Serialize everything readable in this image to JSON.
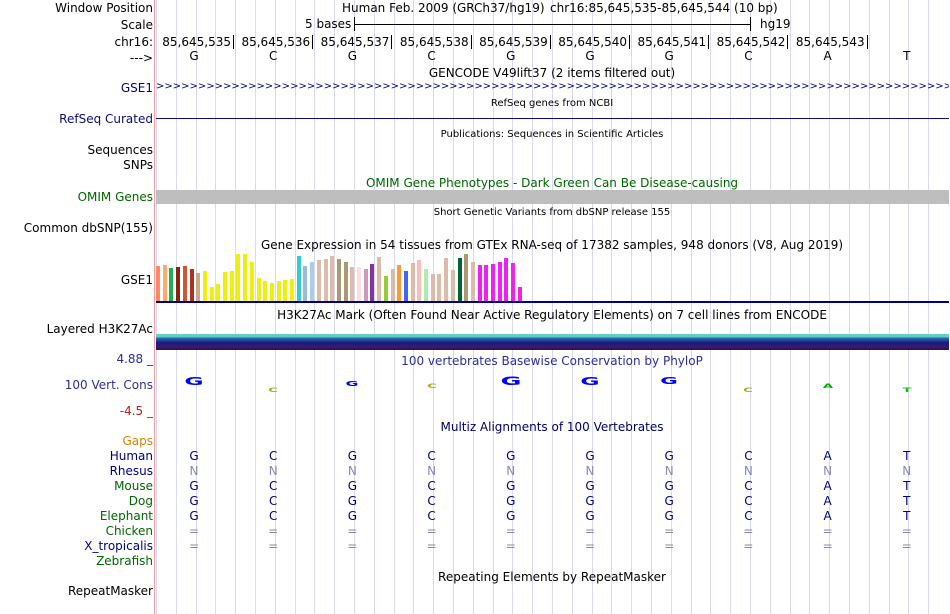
{
  "header": {
    "window_position_label": "Window Position",
    "scale_label": "Scale",
    "chrom_label": "chr16:",
    "strand_label": "--->",
    "assembly": "Human Feb. 2009 (GRCh37/hg19)",
    "position": "chr16:85,645,535-85,645,544 (10 bp)",
    "scale_text": "5 bases",
    "assembly_short": "hg19"
  },
  "coordinates": [
    "85,645,535",
    "85,645,536",
    "85,645,537",
    "85,645,538",
    "85,645,539",
    "85,645,540",
    "85,645,541",
    "85,645,542",
    "85,645,543"
  ],
  "bases": [
    "G",
    "C",
    "G",
    "C",
    "G",
    "G",
    "G",
    "C",
    "A",
    "T"
  ],
  "tracks": {
    "gencode": {
      "title": "GENCODE V49lift37 (2 items filtered out)",
      "item_label": "GSE1",
      "color": "#000080"
    },
    "refseq": {
      "title": "RefSeq genes from NCBI",
      "label": "RefSeq Curated",
      "color": "#0c0c78"
    },
    "publications": {
      "title": "Publications: Sequences in Scientific Articles",
      "label_line1": "Sequences",
      "label_line2": "SNPs"
    },
    "omim": {
      "title": "OMIM Gene Phenotypes - Dark Green Can Be Disease-causing",
      "label": "OMIM Genes",
      "color": "#006600",
      "bar_color": "#bebebe"
    },
    "dbsnp": {
      "title": "Short Genetic Variants from dbSNP release 155",
      "label": "Common dbSNP(155)"
    },
    "gtex": {
      "title": "Gene Expression in 54 tissues from GTEx RNA-seq of 17382 samples, 948 donors (V8, Aug 2019)",
      "label": "GSE1"
    },
    "h3k27ac": {
      "title": "H3K27Ac Mark (Often Found Near Active Regulatory Elements) on 7 cell lines from ENCODE",
      "label": "Layered H3K27Ac"
    },
    "conservation": {
      "title": "100 vertebrates Basewise Conservation by PhyloP",
      "label": "100 Vert. Cons",
      "max_label": "4.88 _",
      "min_label": "-4.5 _",
      "color": "#2c2c9c"
    },
    "multiz": {
      "title": "Multiz Alignments of 100 Vertebrates",
      "color": "#000066"
    },
    "repeatmasker": {
      "title": "Repeating Elements by RepeatMasker",
      "label": "RepeatMasker"
    }
  },
  "species": [
    {
      "name": "Gaps",
      "color": "#cc8800",
      "row": ""
    },
    {
      "name": "Human",
      "color": "#000080",
      "row": "GCGCGGGCAT"
    },
    {
      "name": "Rhesus",
      "color": "#000080",
      "row": "NNNNNNNNNN"
    },
    {
      "name": "Mouse",
      "color": "#006600",
      "row": "GCGCGGGCAT"
    },
    {
      "name": "Dog",
      "color": "#006600",
      "row": "GCGCGGGCAT"
    },
    {
      "name": "Elephant",
      "color": "#006600",
      "row": "GCGCGGGCAT"
    },
    {
      "name": "Chicken",
      "color": "#006600",
      "row": "=========="
    },
    {
      "name": "X_tropicalis",
      "color": "#000080",
      "row": "=========="
    },
    {
      "name": "Zebrafish",
      "color": "#006600",
      "row": ""
    }
  ],
  "gtex_values": [
    0.72,
    0.74,
    0.68,
    0.7,
    0.72,
    0.66,
    0.58,
    0.62,
    0.28,
    0.34,
    0.6,
    0.62,
    0.96,
    0.96,
    0.8,
    0.46,
    0.4,
    0.36,
    0.4,
    0.42,
    0.44,
    0.92,
    0.72,
    0.8,
    0.84,
    0.86,
    0.92,
    0.86,
    0.8,
    0.7,
    0.7,
    0.66,
    0.76,
    0.9,
    0.5,
    0.66,
    0.74,
    0.62,
    0.78,
    0.84,
    0.66,
    0.56,
    0.56,
    0.88,
    0.64,
    0.88,
    0.96,
    0.8,
    0.74,
    0.74,
    0.76,
    0.8,
    0.88,
    0.78,
    0.28
  ],
  "gtex_colors": [
    "#ff8866",
    "#ffaa66",
    "#22aa55",
    "#882211",
    "#cc5533",
    "#aa3322",
    "#ccaa88",
    "#eeee11",
    "#eeee11",
    "#eeee11",
    "#eeee11",
    "#eeee11",
    "#eeee11",
    "#eeee11",
    "#eeee11",
    "#eeee11",
    "#eeee11",
    "#eeee11",
    "#eeee11",
    "#eeee11",
    "#eeee11",
    "#33cccc",
    "#99bbdd",
    "#aaccee",
    "#ddbbaa",
    "#ddbbaa",
    "#ddbbaa",
    "#aa9977",
    "#aa9977",
    "#ddbbaa",
    "#ffdddd",
    "#cc99bb",
    "#883399",
    "#ddbbaa",
    "#99cc33",
    "#ddbbaa",
    "#ff9933",
    "#4466ee",
    "#ddbbaa",
    "#ffbbbb",
    "#aaeeaa",
    "#ddbbaa",
    "#ddbbaa",
    "#ddbbaa",
    "#ddbbaa",
    "#006633",
    "#aa9977",
    "#ddbbaa",
    "#ee22ee",
    "#ee22ee",
    "#ee22ee",
    "#ee22ee",
    "#ee22ee",
    "#ee22ee",
    "#ee22ee"
  ],
  "phylop": [
    {
      "base": "G",
      "value": 2.4,
      "color": "#0000ff"
    },
    {
      "base": "C",
      "value": -0.9,
      "color": "#aaaa22"
    },
    {
      "base": "G",
      "value": 1.6,
      "color": "#0000ff"
    },
    {
      "base": "C",
      "value": 0.0,
      "color": "#aaaa22"
    },
    {
      "base": "G",
      "value": 2.6,
      "color": "#0000ff"
    },
    {
      "base": "G",
      "value": 2.4,
      "color": "#0000ff"
    },
    {
      "base": "G",
      "value": 2.2,
      "color": "#0000ff"
    },
    {
      "base": "C",
      "value": -0.9,
      "color": "#aaaa22"
    },
    {
      "base": "A",
      "value": 0.0,
      "color": "#00aa00"
    },
    {
      "base": "T",
      "value": -1.3,
      "color": "#00cc00"
    }
  ]
}
